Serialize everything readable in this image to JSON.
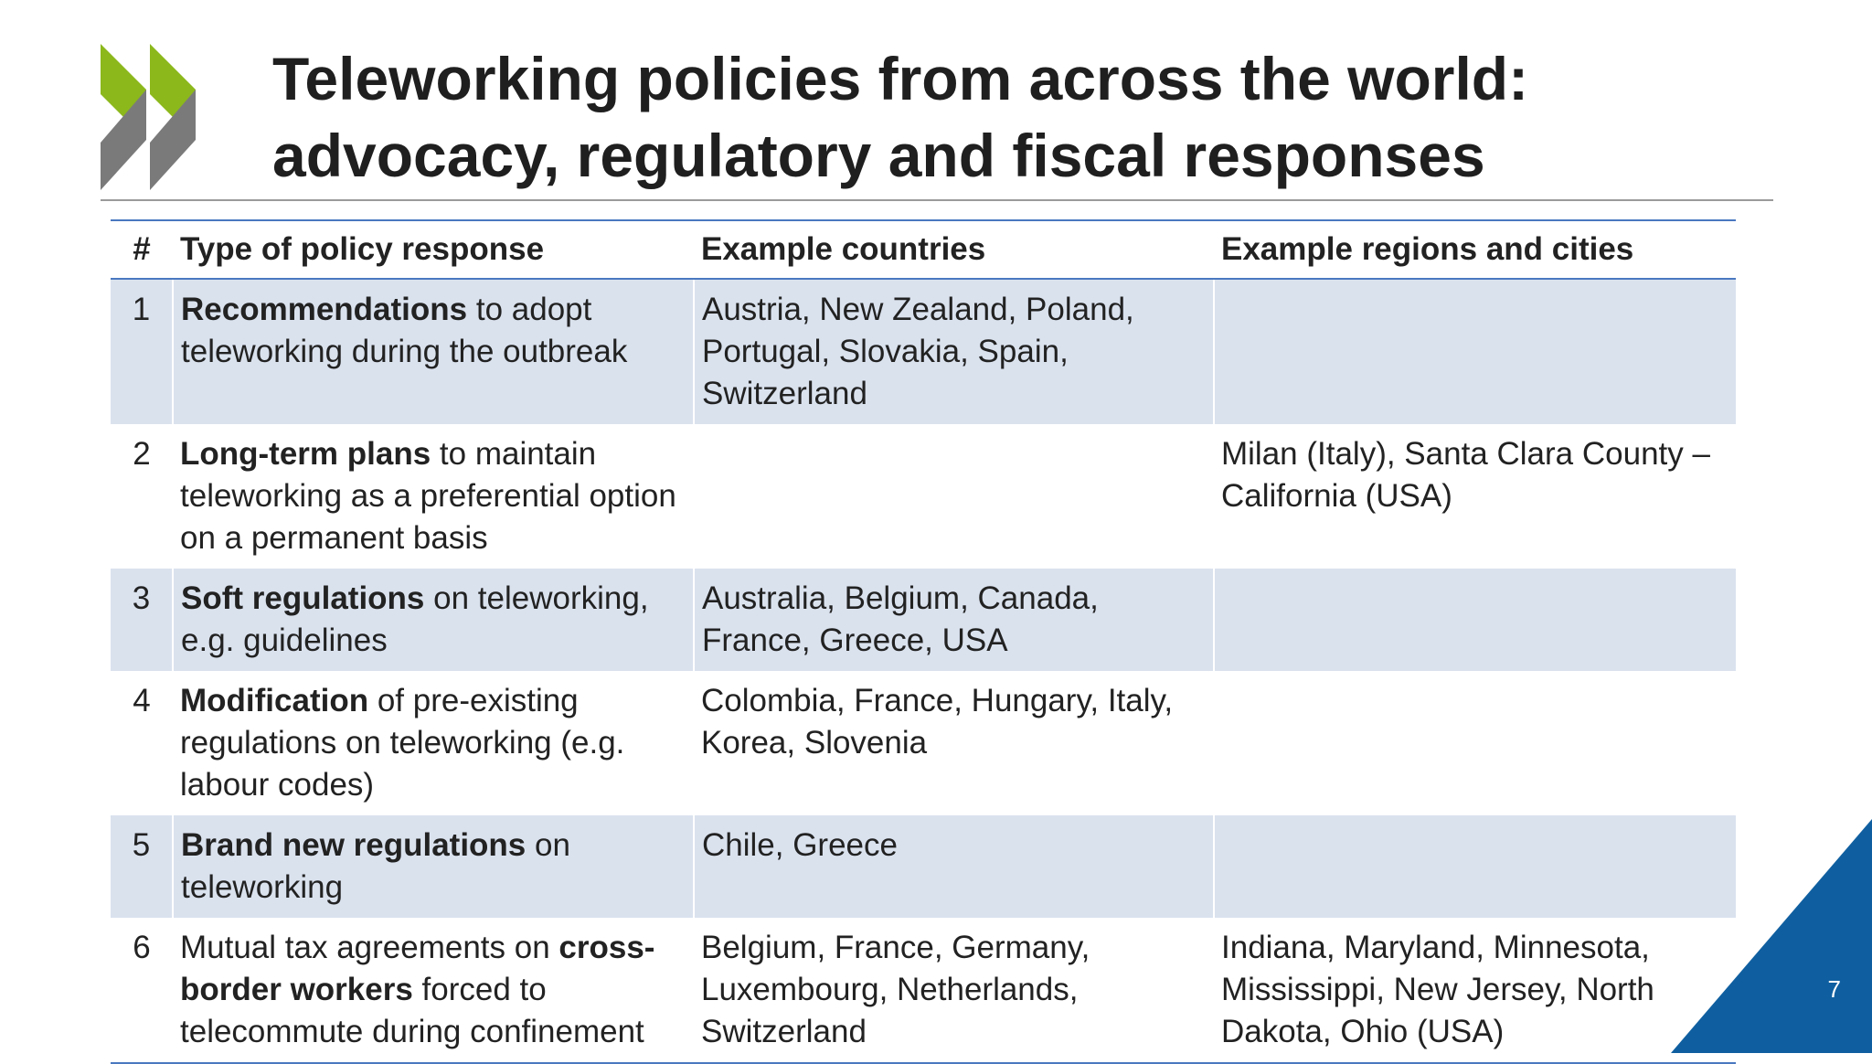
{
  "slide": {
    "title_line1": "Teleworking policies from across the world:",
    "title_line2": "advocacy, regulatory and fiscal responses",
    "page_number": "7",
    "logo_icon": "oecd-chevrons-logo",
    "colors": {
      "logo_green": "#8cb81c",
      "logo_gray": "#7a7a7a",
      "table_rule": "#4a78c0",
      "row_shade": "#dae2ee",
      "corner_blue": "#0f5fa0"
    }
  },
  "table": {
    "headers": [
      "#",
      "Type of policy response",
      "Example countries",
      "Example regions and cities"
    ],
    "rows": [
      {
        "num": "1",
        "policy_bold_1": "Recommendations",
        "policy_text_1": " to adopt teleworking during the outbreak",
        "policy_bold_2": "",
        "policy_text_2": "",
        "countries": "Austria, New Zealand, Poland, Portugal, Slovakia, Spain, Switzerland",
        "regions": ""
      },
      {
        "num": "2",
        "policy_bold_1": "Long-term plans",
        "policy_text_1": " to maintain teleworking as a preferential option on a permanent basis",
        "policy_bold_2": "",
        "policy_text_2": "",
        "countries": "",
        "regions": "Milan (Italy), Santa Clara County – California (USA)"
      },
      {
        "num": "3",
        "policy_bold_1": "Soft regulations",
        "policy_text_1": " on teleworking, e.g. guidelines",
        "policy_bold_2": "",
        "policy_text_2": "",
        "countries": "Australia, Belgium, Canada, France, Greece, USA",
        "regions": ""
      },
      {
        "num": "4",
        "policy_bold_1": "Modification",
        "policy_text_1": " of pre-existing regulations on teleworking (e.g. labour codes)",
        "policy_bold_2": "",
        "policy_text_2": "",
        "countries": "Colombia, France, Hungary, Italy, Korea, Slovenia",
        "regions": ""
      },
      {
        "num": "5",
        "policy_bold_1": "Brand new regulations",
        "policy_text_1": " on teleworking",
        "policy_bold_2": "",
        "policy_text_2": "",
        "countries": "Chile, Greece",
        "regions": ""
      },
      {
        "num": "6",
        "policy_bold_1": "",
        "policy_text_1": "Mutual tax agreements on ",
        "policy_bold_2": "cross-border workers",
        "policy_text_2": " forced to telecommute during confinement",
        "countries": "Belgium, France, Germany, Luxembourg, Netherlands, Switzerland",
        "regions": "Indiana, Maryland, Minnesota, Mississippi, New Jersey, North Dakota, Ohio (USA)"
      }
    ]
  }
}
